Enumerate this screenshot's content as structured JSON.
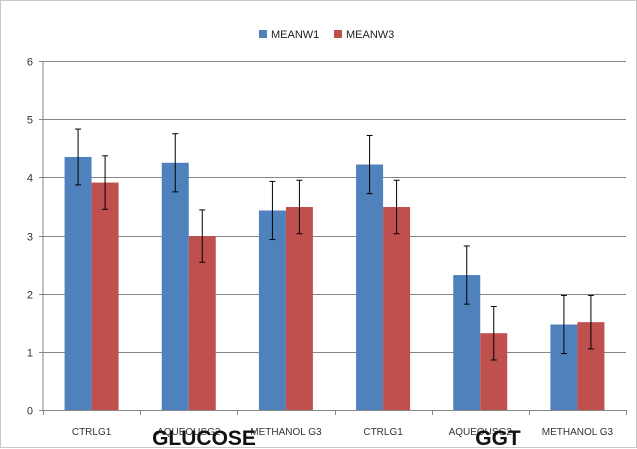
{
  "chart_data": {
    "type": "bar",
    "categories": [
      "CTRLG1",
      "AQUEOUSG2",
      "METHANOL G3",
      "CTRLG1",
      "AQUEOUSG2",
      "METHANOL G3"
    ],
    "series": [
      {
        "name": "MEANW1",
        "color": "#4F81BD",
        "values": [
          4.35,
          4.25,
          3.43,
          4.22,
          2.32,
          1.47
        ],
        "error": [
          0.48,
          0.5,
          0.5,
          0.5,
          0.5,
          0.5
        ]
      },
      {
        "name": "MEANW3",
        "color": "#C0504D",
        "values": [
          3.91,
          2.99,
          3.49,
          3.49,
          1.32,
          1.51
        ],
        "error": [
          0.46,
          0.45,
          0.46,
          0.46,
          0.46,
          0.46
        ]
      }
    ],
    "ylim": [
      0,
      6
    ],
    "yticks": [
      "0",
      "1",
      "2",
      "3",
      "4",
      "5",
      "6"
    ],
    "grid": true,
    "legend": "top-center",
    "group_labels": [
      "GLUCOSE",
      "GGT"
    ]
  }
}
